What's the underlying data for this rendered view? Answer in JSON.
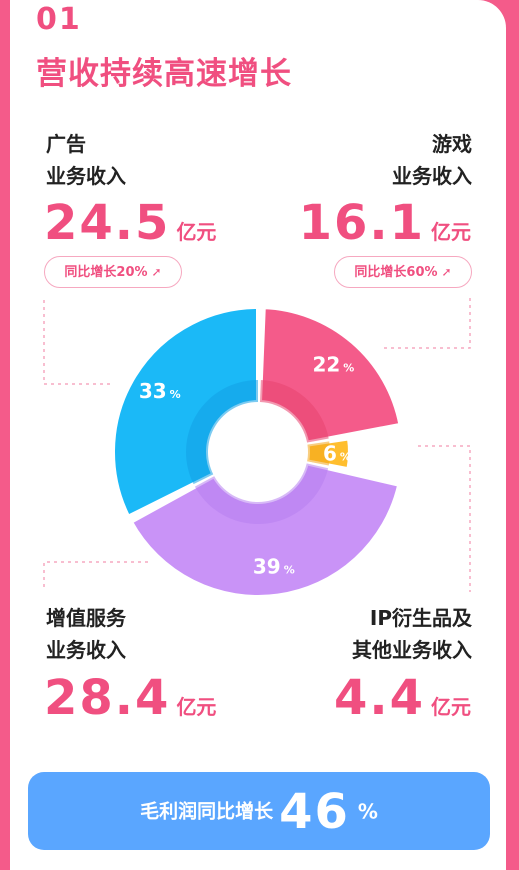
{
  "header": {
    "number": "01",
    "title": "营收持续高速增长"
  },
  "segments": {
    "ad": {
      "cat1": "广告",
      "cat2": "业务收入",
      "value": "24.5",
      "unit": "亿元",
      "growth": "同比增长20%"
    },
    "game": {
      "cat1": "游戏",
      "cat2": "业务收入",
      "value": "16.1",
      "unit": "亿元",
      "growth": "同比增长60%"
    },
    "vas": {
      "cat1": "增值服务",
      "cat2": "业务收入",
      "value": "28.4",
      "unit": "亿元"
    },
    "ip": {
      "cat1": "IP衍生品及",
      "cat2": "其他业务收入",
      "value": "4.4",
      "unit": "亿元"
    }
  },
  "banner": {
    "label": "毛利润同比增长",
    "value": "46",
    "unit": "%"
  },
  "colors": {
    "pink": "#f45b8a",
    "yellow": "#ffbe2e",
    "purple": "#c993f7",
    "blue": "#1bb9f7",
    "accent": "#f04f80",
    "banner": "#5aa6ff"
  },
  "chart_data": {
    "type": "pie",
    "categories": [
      "游戏",
      "IP衍生品及其他",
      "增值服务",
      "广告"
    ],
    "values": [
      22,
      6,
      39,
      33
    ],
    "labels": [
      "22",
      "6",
      "39",
      "33"
    ],
    "unit": "%"
  }
}
